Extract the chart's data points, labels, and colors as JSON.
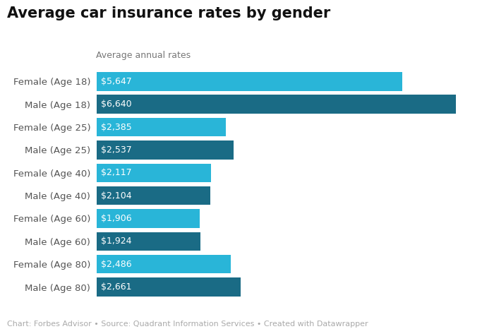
{
  "title": "Average car insurance rates by gender",
  "subtitle": "Average annual rates",
  "footer": "Chart: Forbes Advisor • Source: Quadrant Information Services • Created with Datawrapper",
  "categories": [
    "Female (Age 18)",
    "Male (Age 18)",
    "Female (Age 25)",
    "Male (Age 25)",
    "Female (Age 40)",
    "Male (Age 40)",
    "Female (Age 60)",
    "Male (Age 60)",
    "Female (Age 80)",
    "Male (Age 80)"
  ],
  "values": [
    5647,
    6640,
    2385,
    2537,
    2117,
    2104,
    1906,
    1924,
    2486,
    2661
  ],
  "labels": [
    "$5,647",
    "$6,640",
    "$2,385",
    "$2,537",
    "$2,117",
    "$2,104",
    "$1,906",
    "$1,924",
    "$2,486",
    "$2,661"
  ],
  "colors": [
    "#29b5d8",
    "#1a6b85",
    "#29b5d8",
    "#1a6b85",
    "#29b5d8",
    "#1a6b85",
    "#29b5d8",
    "#1a6b85",
    "#29b5d8",
    "#1a6b85"
  ],
  "background_color": "#ffffff",
  "xlim": [
    0,
    7200
  ],
  "bar_height": 0.82,
  "title_fontsize": 15,
  "subtitle_fontsize": 9,
  "label_fontsize": 9,
  "ytick_fontsize": 9.5,
  "footer_fontsize": 8
}
